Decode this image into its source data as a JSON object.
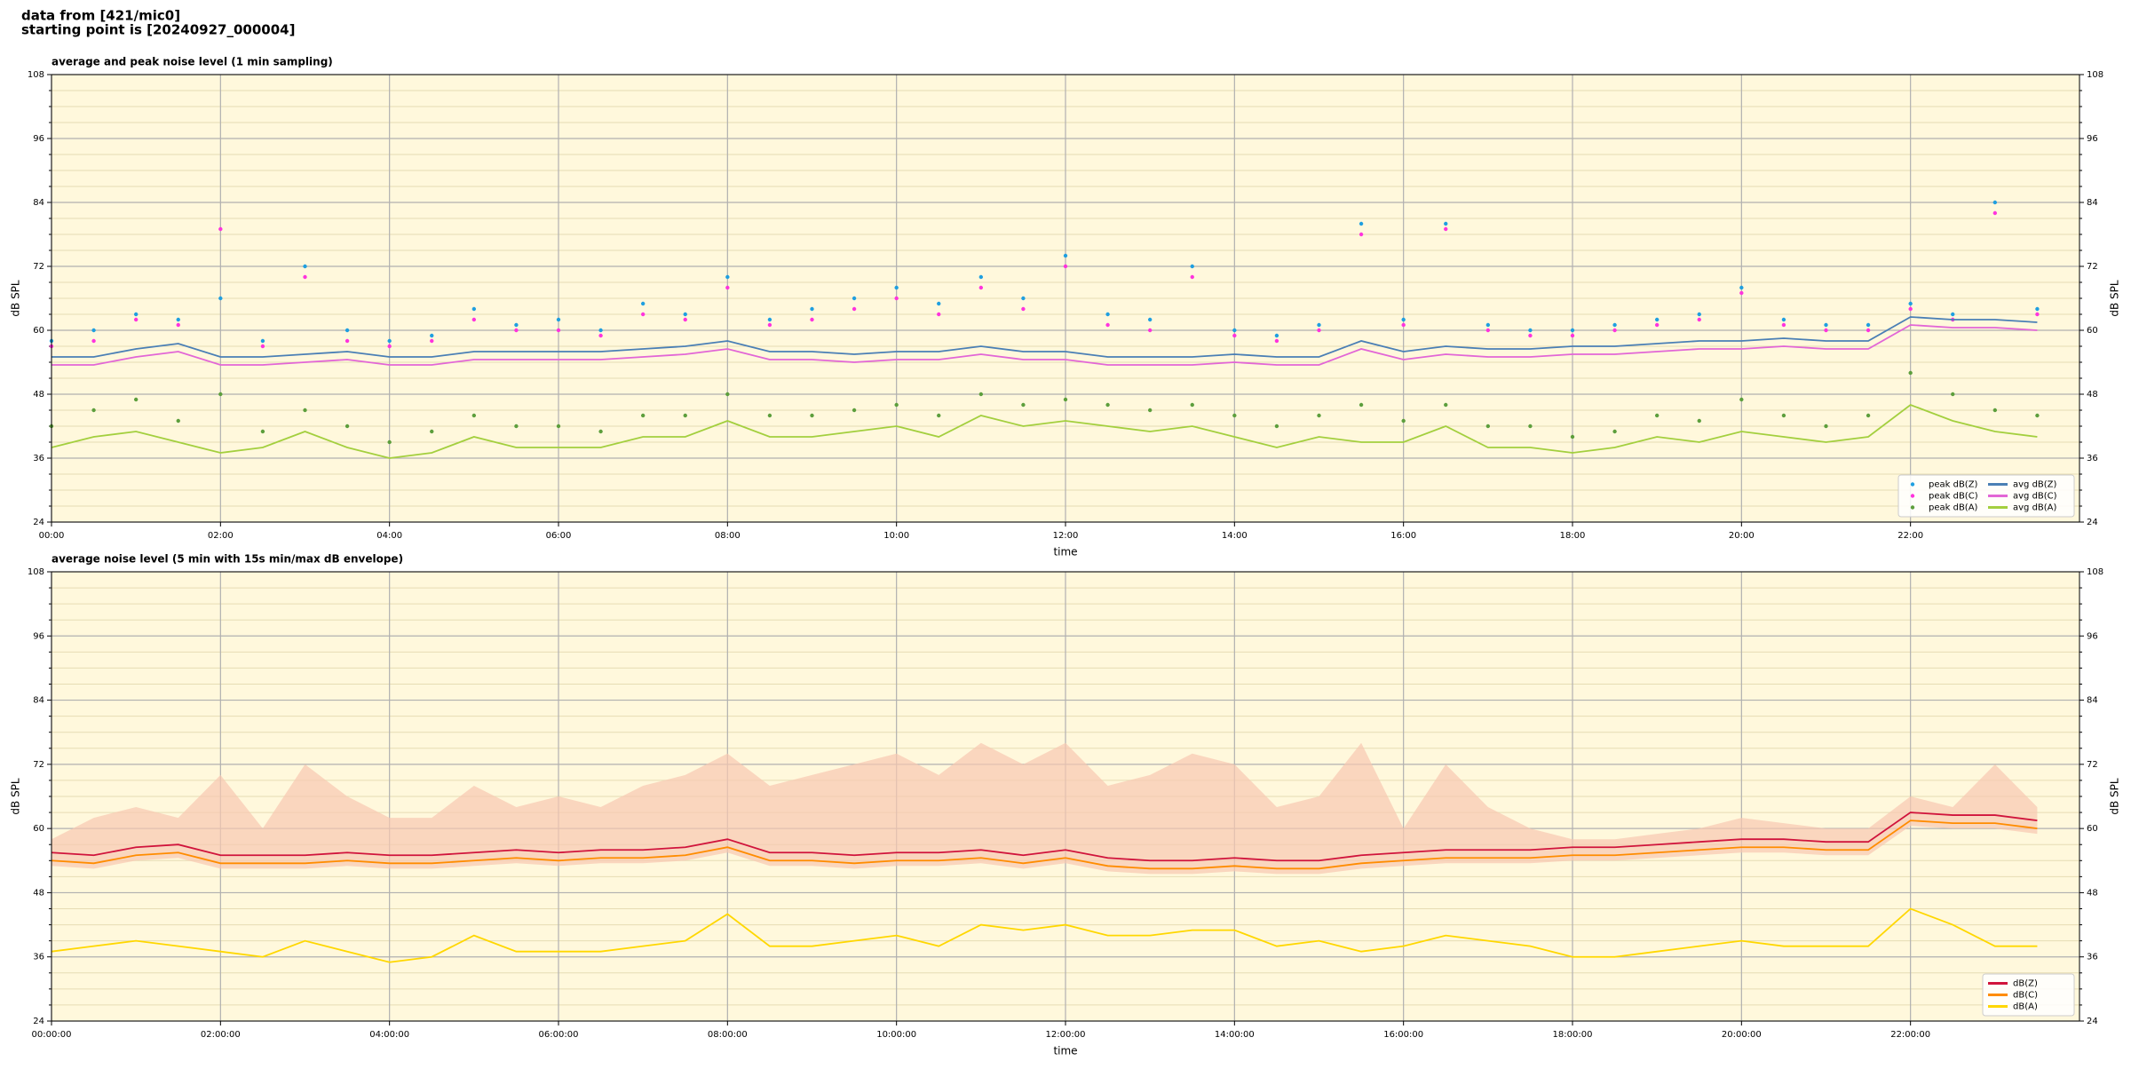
{
  "header": {
    "line1": "data from [421/mic0]",
    "line2": "starting point is [20240927_000004]"
  },
  "chart_data": [
    {
      "type": "line",
      "title": "average and peak noise level (1 min sampling)",
      "xlabel": "time",
      "ylabel": "dB SPL",
      "background": "#fff8dc",
      "grid": true,
      "legend": "lower right",
      "legend_columns": 2,
      "x": [
        0,
        0.5,
        1,
        1.5,
        2,
        2.5,
        3,
        3.5,
        4,
        4.5,
        5,
        5.5,
        6,
        6.5,
        7,
        7.5,
        8,
        8.5,
        9,
        9.5,
        10,
        10.5,
        11,
        11.5,
        12,
        12.5,
        13,
        13.5,
        14,
        14.5,
        15,
        15.5,
        16,
        16.5,
        17,
        17.5,
        18,
        18.5,
        19,
        19.5,
        20,
        20.5,
        21,
        21.5,
        22,
        22.5,
        23,
        23.5
      ],
      "xlim": [
        0,
        24
      ],
      "xticks": [
        {
          "value": 0,
          "label": "00:00"
        },
        {
          "value": 2,
          "label": "02:00"
        },
        {
          "value": 4,
          "label": "04:00"
        },
        {
          "value": 6,
          "label": "06:00"
        },
        {
          "value": 8,
          "label": "08:00"
        },
        {
          "value": 10,
          "label": "10:00"
        },
        {
          "value": 12,
          "label": "12:00"
        },
        {
          "value": 14,
          "label": "14:00"
        },
        {
          "value": 16,
          "label": "16:00"
        },
        {
          "value": 18,
          "label": "18:00"
        },
        {
          "value": 20,
          "label": "20:00"
        },
        {
          "value": 22,
          "label": "22:00"
        }
      ],
      "ylim": [
        24,
        108
      ],
      "yticks": [
        24,
        36,
        48,
        60,
        72,
        84,
        96,
        108
      ],
      "minor_yticks": [
        27,
        30,
        33,
        39,
        42,
        45,
        51,
        54,
        57,
        63,
        66,
        69,
        75,
        78,
        81,
        87,
        90,
        93,
        99,
        102,
        105
      ],
      "series": [
        {
          "name": "peak dB(Z)",
          "mark": "dot",
          "color": "#1f9fe0",
          "values": [
            58,
            60,
            63,
            62,
            66,
            58,
            72,
            60,
            58,
            59,
            64,
            61,
            62,
            60,
            65,
            63,
            70,
            62,
            64,
            66,
            68,
            65,
            70,
            66,
            74,
            63,
            62,
            72,
            60,
            59,
            61,
            80,
            62,
            80,
            61,
            60,
            60,
            61,
            62,
            63,
            68,
            62,
            61,
            61,
            65,
            63,
            84,
            64
          ]
        },
        {
          "name": "peak dB(C)",
          "mark": "dot",
          "color": "#ff33dd",
          "values": [
            57,
            58,
            62,
            61,
            79,
            57,
            70,
            58,
            57,
            58,
            62,
            60,
            60,
            59,
            63,
            62,
            68,
            61,
            62,
            64,
            66,
            63,
            68,
            64,
            72,
            61,
            60,
            70,
            59,
            58,
            60,
            78,
            61,
            79,
            60,
            59,
            59,
            60,
            61,
            62,
            67,
            61,
            60,
            60,
            64,
            62,
            82,
            63
          ]
        },
        {
          "name": "peak dB(A)",
          "mark": "dot",
          "color": "#5c9e3c",
          "values": [
            42,
            45,
            47,
            43,
            48,
            41,
            45,
            42,
            39,
            41,
            44,
            42,
            42,
            41,
            44,
            44,
            48,
            44,
            44,
            45,
            46,
            44,
            48,
            46,
            47,
            46,
            45,
            46,
            44,
            42,
            44,
            46,
            43,
            46,
            42,
            42,
            40,
            41,
            44,
            43,
            47,
            44,
            42,
            44,
            52,
            48,
            45,
            44
          ]
        },
        {
          "name": "avg dB(Z)",
          "mark": "line",
          "color": "#4a7fb5",
          "values": [
            55,
            55,
            56.5,
            57.5,
            55,
            55,
            55.5,
            56,
            55,
            55,
            56,
            56,
            56,
            56,
            56.5,
            57,
            58,
            56,
            56,
            55.5,
            56,
            56,
            57,
            56,
            56,
            55,
            55,
            55,
            55.5,
            55,
            55,
            58,
            56,
            57,
            56.5,
            56.5,
            57,
            57,
            57.5,
            58,
            58,
            58.5,
            58,
            58,
            62.5,
            62,
            62,
            61.5
          ]
        },
        {
          "name": "avg dB(C)",
          "mark": "line",
          "color": "#e266d6",
          "values": [
            53.5,
            53.5,
            55,
            56,
            53.5,
            53.5,
            54,
            54.5,
            53.5,
            53.5,
            54.5,
            54.5,
            54.5,
            54.5,
            55,
            55.5,
            56.5,
            54.5,
            54.5,
            54,
            54.5,
            54.5,
            55.5,
            54.5,
            54.5,
            53.5,
            53.5,
            53.5,
            54,
            53.5,
            53.5,
            56.5,
            54.5,
            55.5,
            55,
            55,
            55.5,
            55.5,
            56,
            56.5,
            56.5,
            57,
            56.5,
            56.5,
            61,
            60.5,
            60.5,
            60
          ]
        },
        {
          "name": "avg dB(A)",
          "mark": "line",
          "color": "#a3cf3e",
          "values": [
            38,
            40,
            41,
            39,
            37,
            38,
            41,
            38,
            36,
            37,
            40,
            38,
            38,
            38,
            40,
            40,
            43,
            40,
            40,
            41,
            42,
            40,
            44,
            42,
            43,
            42,
            41,
            42,
            40,
            38,
            40,
            39,
            39,
            42,
            38,
            38,
            37,
            38,
            40,
            39,
            41,
            40,
            39,
            40,
            46,
            43,
            41,
            40
          ]
        }
      ]
    },
    {
      "type": "line",
      "title": "average noise level (5 min with 15s min/max dB envelope)",
      "xlabel": "time",
      "ylabel": "dB SPL",
      "background": "#fff8dc",
      "grid": true,
      "legend": "lower right",
      "legend_columns": 1,
      "x": [
        0,
        0.5,
        1,
        1.5,
        2,
        2.5,
        3,
        3.5,
        4,
        4.5,
        5,
        5.5,
        6,
        6.5,
        7,
        7.5,
        8,
        8.5,
        9,
        9.5,
        10,
        10.5,
        11,
        11.5,
        12,
        12.5,
        13,
        13.5,
        14,
        14.5,
        15,
        15.5,
        16,
        16.5,
        17,
        17.5,
        18,
        18.5,
        19,
        19.5,
        20,
        20.5,
        21,
        21.5,
        22,
        22.5,
        23,
        23.5
      ],
      "xlim": [
        0,
        24
      ],
      "xticks": [
        {
          "value": 0,
          "label": "00:00:00"
        },
        {
          "value": 2,
          "label": "02:00:00"
        },
        {
          "value": 4,
          "label": "04:00:00"
        },
        {
          "value": 6,
          "label": "06:00:00"
        },
        {
          "value": 8,
          "label": "08:00:00"
        },
        {
          "value": 10,
          "label": "10:00:00"
        },
        {
          "value": 12,
          "label": "12:00:00"
        },
        {
          "value": 14,
          "label": "14:00:00"
        },
        {
          "value": 16,
          "label": "16:00:00"
        },
        {
          "value": 18,
          "label": "18:00:00"
        },
        {
          "value": 20,
          "label": "20:00:00"
        },
        {
          "value": 22,
          "label": "22:00:00"
        }
      ],
      "ylim": [
        24,
        108
      ],
      "yticks": [
        24,
        36,
        48,
        60,
        72,
        84,
        96,
        108
      ],
      "minor_yticks": [
        27,
        30,
        33,
        39,
        42,
        45,
        51,
        54,
        57,
        63,
        66,
        69,
        75,
        78,
        81,
        87,
        90,
        93,
        99,
        102,
        105
      ],
      "envelope": {
        "color": "#f8c8b0",
        "high": [
          58,
          62,
          64,
          62,
          70,
          60,
          72,
          66,
          62,
          62,
          68,
          64,
          66,
          64,
          68,
          70,
          74,
          68,
          70,
          72,
          74,
          70,
          76,
          72,
          76,
          68,
          70,
          74,
          72,
          64,
          66,
          76,
          60,
          72,
          64,
          60,
          58,
          58,
          59,
          60,
          62,
          61,
          60,
          60,
          66,
          64,
          72,
          64
        ],
        "low": [
          53,
          52.5,
          54,
          54.5,
          52.5,
          52.5,
          52.5,
          53,
          52.5,
          52.5,
          53,
          53.5,
          53,
          53.5,
          53.5,
          54,
          55.5,
          53,
          53,
          52.5,
          53,
          53,
          53.5,
          52.5,
          53.5,
          52,
          51.5,
          51.5,
          52,
          51.5,
          51.5,
          52.5,
          53,
          53.5,
          53.5,
          53.5,
          54,
          54,
          54.5,
          55,
          55.5,
          55.5,
          55,
          55,
          60.5,
          60,
          60,
          59
        ]
      },
      "series": [
        {
          "name": "dB(Z)",
          "mark": "line",
          "color": "#d0143c",
          "values": [
            55.5,
            55,
            56.5,
            57,
            55,
            55,
            55,
            55.5,
            55,
            55,
            55.5,
            56,
            55.5,
            56,
            56,
            56.5,
            58,
            55.5,
            55.5,
            55,
            55.5,
            55.5,
            56,
            55,
            56,
            54.5,
            54,
            54,
            54.5,
            54,
            54,
            55,
            55.5,
            56,
            56,
            56,
            56.5,
            56.5,
            57,
            57.5,
            58,
            58,
            57.5,
            57.5,
            63,
            62.5,
            62.5,
            61.5
          ]
        },
        {
          "name": "dB(C)",
          "mark": "line",
          "color": "#ff8c00",
          "values": [
            54,
            53.5,
            55,
            55.5,
            53.5,
            53.5,
            53.5,
            54,
            53.5,
            53.5,
            54,
            54.5,
            54,
            54.5,
            54.5,
            55,
            56.5,
            54,
            54,
            53.5,
            54,
            54,
            54.5,
            53.5,
            54.5,
            53,
            52.5,
            52.5,
            53,
            52.5,
            52.5,
            53.5,
            54,
            54.5,
            54.5,
            54.5,
            55,
            55,
            55.5,
            56,
            56.5,
            56.5,
            56,
            56,
            61.5,
            61,
            61,
            60
          ]
        },
        {
          "name": "dB(A)",
          "mark": "line",
          "color": "#ffd700",
          "values": [
            37,
            38,
            39,
            38,
            37,
            36,
            39,
            37,
            35,
            36,
            40,
            37,
            37,
            37,
            38,
            39,
            44,
            38,
            38,
            39,
            40,
            38,
            42,
            41,
            42,
            40,
            40,
            41,
            41,
            38,
            39,
            37,
            38,
            40,
            39,
            38,
            36,
            36,
            37,
            38,
            39,
            38,
            38,
            38,
            45,
            42,
            38,
            38
          ]
        }
      ]
    }
  ]
}
